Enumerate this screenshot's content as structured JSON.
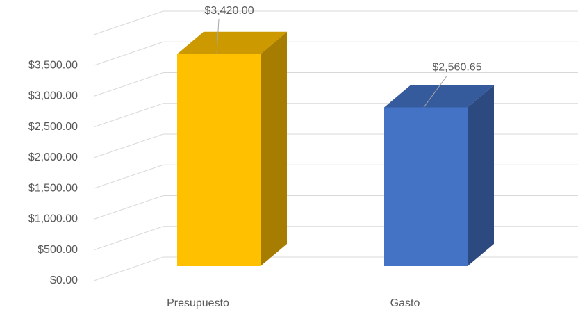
{
  "chart_data": {
    "type": "bar3d",
    "categories": [
      "Presupuesto",
      "Gasto"
    ],
    "values": [
      3420,
      2560.65
    ],
    "value_labels": [
      "$3,420.00",
      "$2,560.65"
    ],
    "colors": [
      "#ffc000",
      "#4472c4"
    ],
    "ylim": [
      0,
      4000
    ],
    "yticks": [
      {
        "value": 0,
        "label": "$0.00"
      },
      {
        "value": 500,
        "label": "$500.00"
      },
      {
        "value": 1000,
        "label": "$1,000.00"
      },
      {
        "value": 1500,
        "label": "$1,500.00"
      },
      {
        "value": 2000,
        "label": "$2,000.00"
      },
      {
        "value": 2500,
        "label": "$2,500.00"
      },
      {
        "value": 3000,
        "label": "$3,000.00"
      },
      {
        "value": 3500,
        "label": "$3,500.00"
      }
    ],
    "grid": true
  }
}
